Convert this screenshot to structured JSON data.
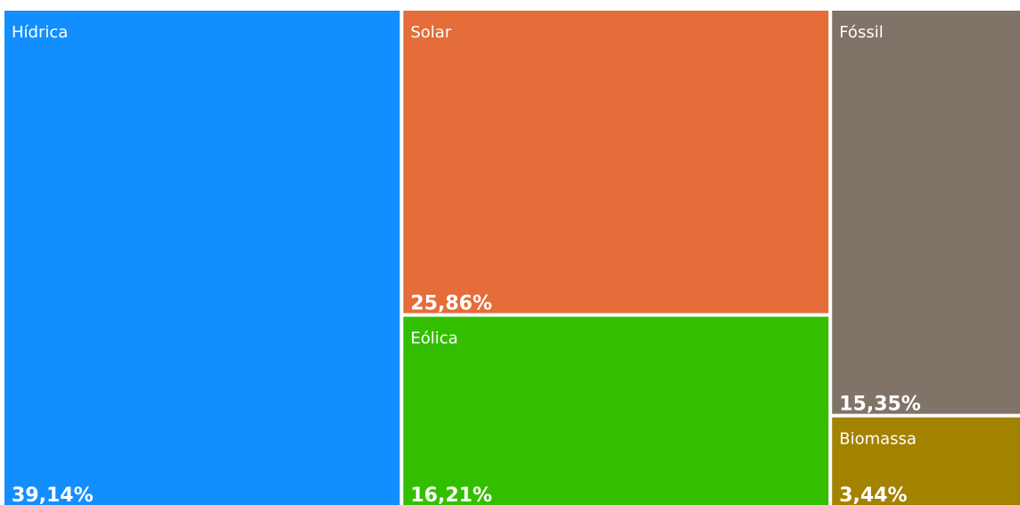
{
  "chart_data": {
    "type": "treemap",
    "categories": [
      "Hídrica",
      "Solar",
      "Eólica",
      "Fóssil",
      "Biomassa"
    ],
    "values": [
      39.14,
      25.86,
      16.21,
      15.35,
      3.44
    ],
    "value_labels": [
      "39,14%",
      "25,86%",
      "16,21%",
      "15,35%",
      "3,44%"
    ],
    "colors": [
      "#128eff",
      "#e56d39",
      "#33bf00",
      "#807468",
      "#a38200"
    ]
  }
}
